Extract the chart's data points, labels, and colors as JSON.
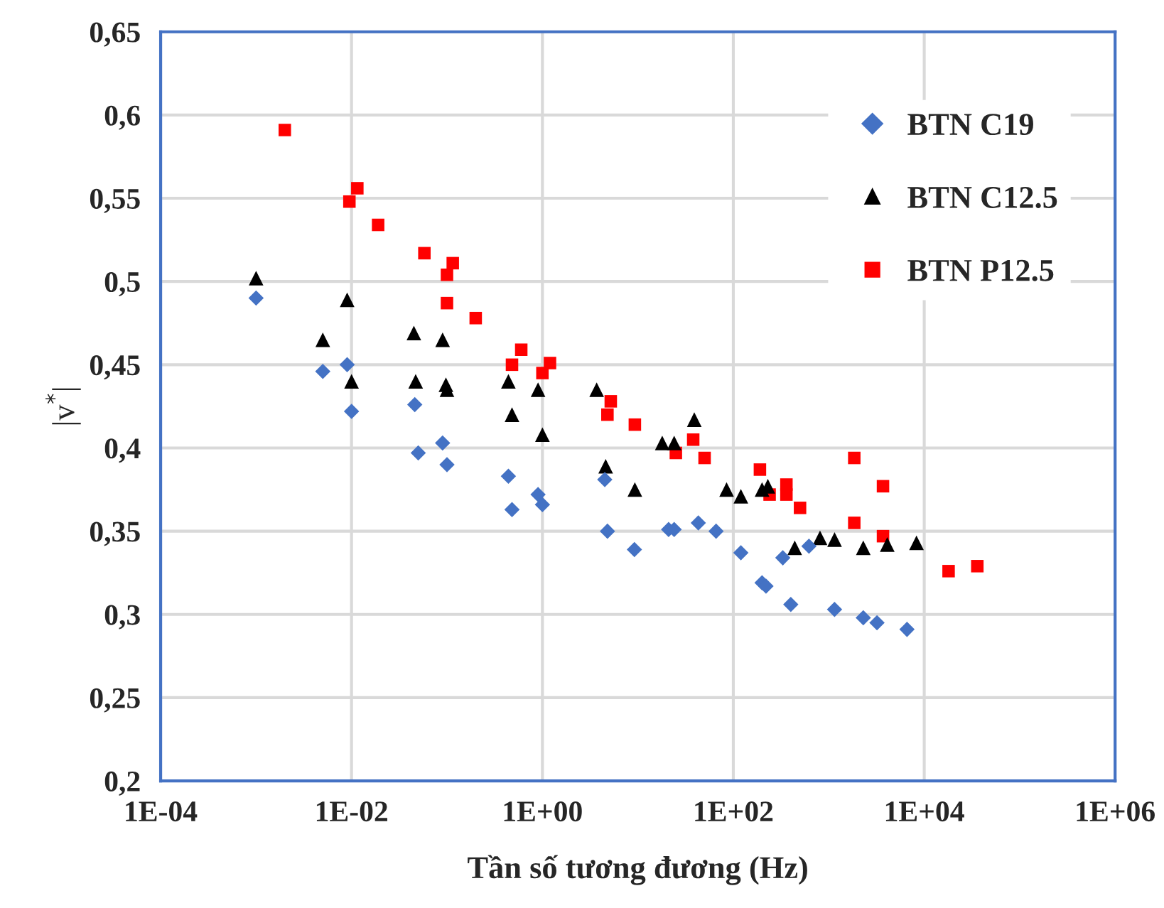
{
  "chart_data": {
    "type": "scatter",
    "xlabel": "Tần số tương đương (Hz)",
    "ylabel": "|v$^{*}$|",
    "log": "x",
    "grid": true,
    "legend": "top right",
    "xlim": [
      0.0001,
      1000000
    ],
    "ylim": [
      0.2,
      0.65
    ],
    "xticks": [
      {
        "value": 0.0001,
        "label": "1E-04"
      },
      {
        "value": 0.01,
        "label": "1E-02"
      },
      {
        "value": 1,
        "label": "1E+00"
      },
      {
        "value": 100,
        "label": "1E+02"
      },
      {
        "value": 10000,
        "label": "1E+04"
      },
      {
        "value": 1000000,
        "label": "1E+06"
      }
    ],
    "yticks": [
      {
        "value": 0.2,
        "label": "0,2"
      },
      {
        "value": 0.25,
        "label": "0,25"
      },
      {
        "value": 0.3,
        "label": "0,3"
      },
      {
        "value": 0.35,
        "label": "0,35"
      },
      {
        "value": 0.4,
        "label": "0,4"
      },
      {
        "value": 0.45,
        "label": "0,45"
      },
      {
        "value": 0.5,
        "label": "0,5"
      },
      {
        "value": 0.55,
        "label": "0,55"
      },
      {
        "value": 0.6,
        "label": "0,6"
      },
      {
        "value": 0.65,
        "label": "0,65"
      }
    ],
    "series": [
      {
        "name": "BTN C19",
        "color": "#4472c4",
        "marker": "diamond",
        "x": [
          0.001,
          0.005,
          0.009,
          0.01,
          0.046,
          0.05,
          0.09,
          0.1,
          0.44,
          0.48,
          0.9,
          1.0,
          4.5,
          4.8,
          9.2,
          21,
          24,
          43,
          66,
          120,
          200,
          220,
          330,
          400,
          620,
          1150,
          2300,
          3200,
          6600
        ],
        "values": [
          0.49,
          0.446,
          0.45,
          0.422,
          0.426,
          0.397,
          0.403,
          0.39,
          0.383,
          0.363,
          0.372,
          0.366,
          0.381,
          0.35,
          0.339,
          0.351,
          0.351,
          0.355,
          0.35,
          0.337,
          0.319,
          0.317,
          0.334,
          0.306,
          0.341,
          0.303,
          0.298,
          0.295,
          0.291
        ]
      },
      {
        "name": "BTN C12.5",
        "color": "#000000",
        "marker": "triangle",
        "x": [
          0.001,
          0.005,
          0.009,
          0.01,
          0.045,
          0.047,
          0.09,
          0.0975,
          0.1,
          0.44,
          0.48,
          0.9,
          1.0,
          3.7,
          4.6,
          9.3,
          18,
          24,
          39,
          85,
          120,
          200,
          230,
          440,
          810,
          1150,
          2300,
          4100,
          8300
        ],
        "values": [
          0.502,
          0.465,
          0.489,
          0.44,
          0.469,
          0.44,
          0.465,
          0.438,
          0.435,
          0.44,
          0.42,
          0.435,
          0.408,
          0.435,
          0.389,
          0.375,
          0.403,
          0.403,
          0.417,
          0.375,
          0.371,
          0.375,
          0.377,
          0.34,
          0.346,
          0.345,
          0.34,
          0.342,
          0.343
        ]
      },
      {
        "name": "BTN P12.5",
        "color": "#ff0000",
        "marker": "square",
        "x": [
          0.002,
          0.0095,
          0.0115,
          0.019,
          0.058,
          0.1,
          0.115,
          0.1,
          0.2,
          0.48,
          0.6,
          1.0,
          1.2,
          4.8,
          5.2,
          9.3,
          25,
          38,
          50,
          190,
          240,
          360,
          360,
          500,
          1850,
          3700,
          1850,
          3700,
          18000,
          36000
        ],
        "values": [
          0.591,
          0.548,
          0.556,
          0.534,
          0.517,
          0.504,
          0.511,
          0.487,
          0.478,
          0.45,
          0.459,
          0.445,
          0.451,
          0.42,
          0.428,
          0.414,
          0.397,
          0.405,
          0.394,
          0.387,
          0.372,
          0.378,
          0.372,
          0.364,
          0.394,
          0.377,
          0.355,
          0.347,
          0.326,
          0.329
        ]
      }
    ]
  }
}
